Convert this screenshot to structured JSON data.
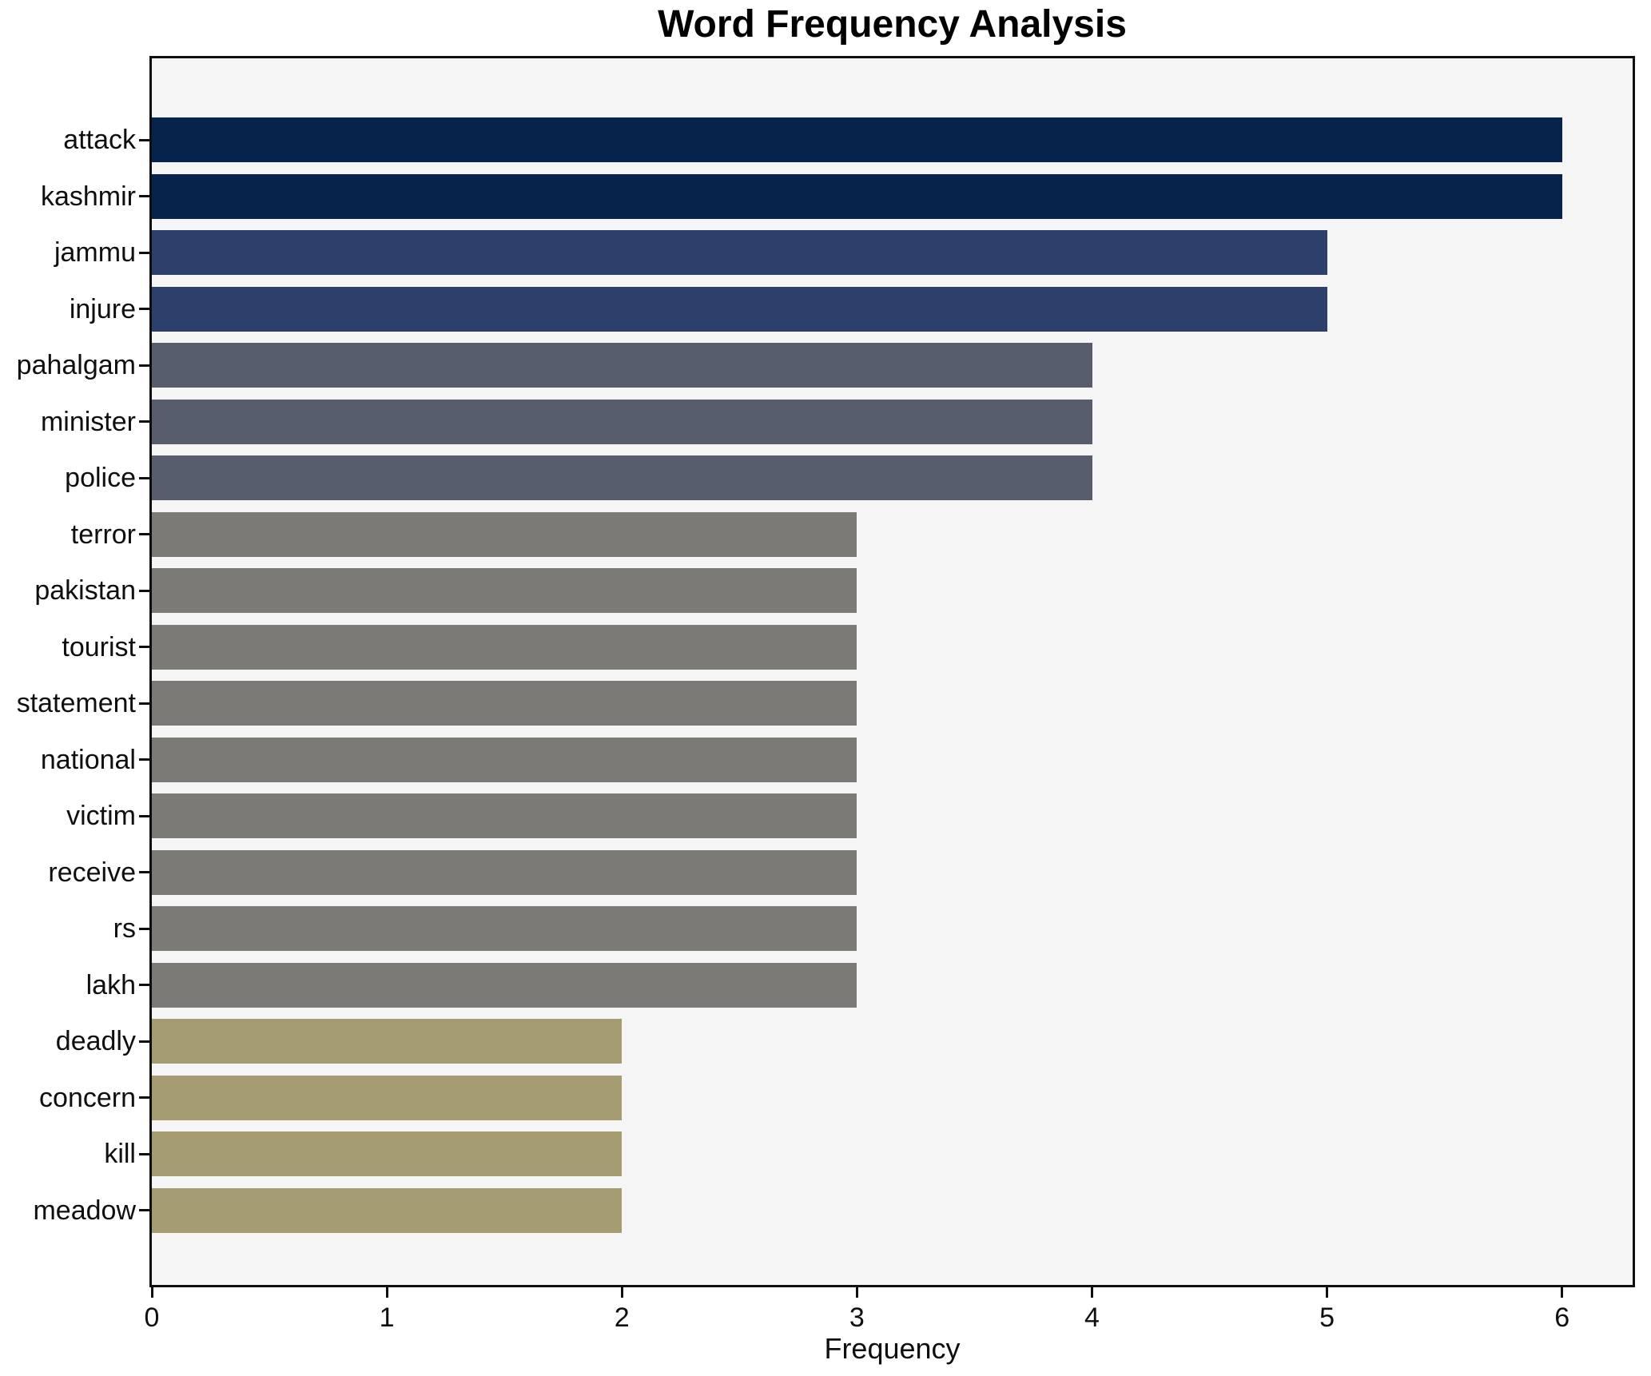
{
  "chart_data": {
    "type": "bar",
    "orientation": "horizontal",
    "title": "Word Frequency Analysis",
    "xlabel": "Frequency",
    "ylabel": "",
    "grid": false,
    "legend_position": "none",
    "xlim": [
      0,
      6.3
    ],
    "xticks": [
      "0",
      "1",
      "2",
      "3",
      "4",
      "5",
      "6"
    ],
    "xtick_values": [
      0,
      1,
      2,
      3,
      4,
      5,
      6
    ],
    "categories": [
      "attack",
      "kashmir",
      "jammu",
      "injure",
      "pahalgam",
      "minister",
      "police",
      "terror",
      "pakistan",
      "tourist",
      "statement",
      "national",
      "victim",
      "receive",
      "rs",
      "lakh",
      "deadly",
      "concern",
      "kill",
      "meadow"
    ],
    "values": [
      6,
      6,
      5,
      5,
      4,
      4,
      4,
      3,
      3,
      3,
      3,
      3,
      3,
      3,
      3,
      3,
      2,
      2,
      2,
      2
    ],
    "bar_colors": [
      "#06234c",
      "#06234c",
      "#2d3f6b",
      "#2d3f6b",
      "#575d6c",
      "#575d6c",
      "#575d6c",
      "#7b7a76",
      "#7b7a76",
      "#7b7a76",
      "#7b7a76",
      "#7b7a76",
      "#7b7a76",
      "#7b7a76",
      "#7b7a76",
      "#7b7a76",
      "#a69c72",
      "#a69c72",
      "#a69c72",
      "#a69c72"
    ],
    "colors_by_value": {
      "6": "#06234c",
      "5": "#2d3f6b",
      "4": "#575d6c",
      "3": "#7b7a76",
      "2": "#a69c72"
    },
    "plot_background": "#f5f5f5",
    "figure_background": "#ffffff",
    "spine_color": "#0f0f0f"
  }
}
